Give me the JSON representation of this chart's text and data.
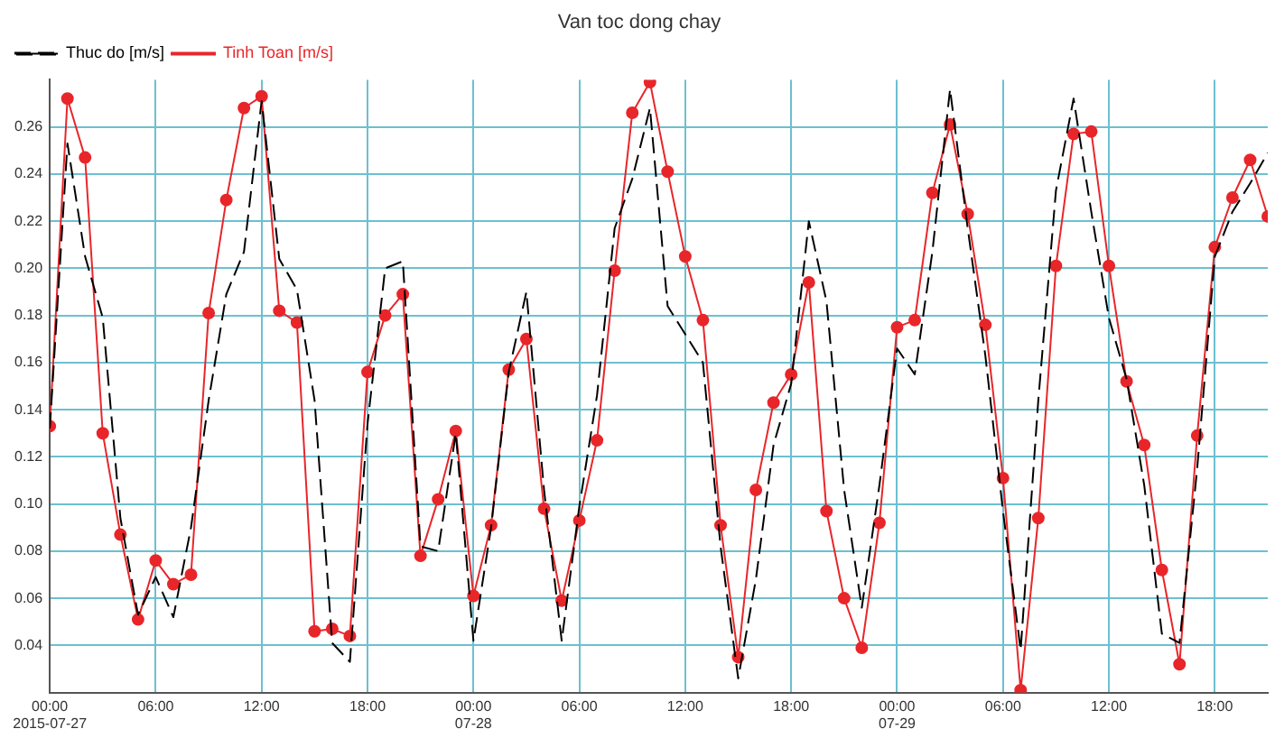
{
  "chart_data": {
    "type": "line",
    "title": "Van toc dong chay",
    "x": [
      "2015-07-27T00:00",
      "2015-07-27T01:00",
      "2015-07-27T02:00",
      "2015-07-27T03:00",
      "2015-07-27T04:00",
      "2015-07-27T05:00",
      "2015-07-27T06:00",
      "2015-07-27T07:00",
      "2015-07-27T08:00",
      "2015-07-27T09:00",
      "2015-07-27T10:00",
      "2015-07-27T11:00",
      "2015-07-27T12:00",
      "2015-07-27T13:00",
      "2015-07-27T14:00",
      "2015-07-27T15:00",
      "2015-07-27T16:00",
      "2015-07-27T17:00",
      "2015-07-27T18:00",
      "2015-07-27T19:00",
      "2015-07-27T20:00",
      "2015-07-27T21:00",
      "2015-07-27T22:00",
      "2015-07-27T23:00",
      "2015-07-28T00:00",
      "2015-07-28T01:00",
      "2015-07-28T02:00",
      "2015-07-28T03:00",
      "2015-07-28T04:00",
      "2015-07-28T05:00",
      "2015-07-28T06:00",
      "2015-07-28T07:00",
      "2015-07-28T08:00",
      "2015-07-28T09:00",
      "2015-07-28T10:00",
      "2015-07-28T11:00",
      "2015-07-28T12:00",
      "2015-07-28T13:00",
      "2015-07-28T14:00",
      "2015-07-28T15:00",
      "2015-07-28T16:00",
      "2015-07-28T17:00",
      "2015-07-28T18:00",
      "2015-07-28T19:00",
      "2015-07-28T20:00",
      "2015-07-28T21:00",
      "2015-07-28T22:00",
      "2015-07-28T23:00",
      "2015-07-29T00:00",
      "2015-07-29T01:00",
      "2015-07-29T02:00",
      "2015-07-29T03:00",
      "2015-07-29T04:00",
      "2015-07-29T05:00",
      "2015-07-29T06:00",
      "2015-07-29T07:00",
      "2015-07-29T08:00",
      "2015-07-29T09:00",
      "2015-07-29T10:00",
      "2015-07-29T11:00",
      "2015-07-29T12:00",
      "2015-07-29T13:00",
      "2015-07-29T14:00",
      "2015-07-29T15:00",
      "2015-07-29T16:00",
      "2015-07-29T17:00",
      "2015-07-29T18:00",
      "2015-07-29T19:00",
      "2015-07-29T20:00",
      "2015-07-29T21:00"
    ],
    "series": [
      {
        "name": "Thuc do [m/s]",
        "color": "#000000",
        "line_style": "dashed",
        "marker": "none",
        "values": [
          0.132,
          0.253,
          0.205,
          0.179,
          0.094,
          0.053,
          0.069,
          0.052,
          0.09,
          0.144,
          0.189,
          0.207,
          0.271,
          0.204,
          0.191,
          0.144,
          0.041,
          0.033,
          0.134,
          0.2,
          0.203,
          0.082,
          0.08,
          0.13,
          0.042,
          0.09,
          0.156,
          0.19,
          0.106,
          0.042,
          0.099,
          0.146,
          0.217,
          0.238,
          0.268,
          0.184,
          0.172,
          0.16,
          0.082,
          0.026,
          0.068,
          0.125,
          0.151,
          0.22,
          0.186,
          0.106,
          0.056,
          0.108,
          0.166,
          0.155,
          0.207,
          0.276,
          0.217,
          0.163,
          0.097,
          0.038,
          0.144,
          0.233,
          0.272,
          0.224,
          0.179,
          0.153,
          0.108,
          0.045,
          0.041,
          0.115,
          0.205,
          0.224,
          0.236,
          0.249
        ]
      },
      {
        "name": "Tinh Toan [m/s]",
        "color": "#e8262a",
        "line_style": "solid",
        "marker": "circle",
        "values": [
          0.133,
          0.272,
          0.247,
          0.13,
          0.087,
          0.051,
          0.076,
          0.066,
          0.07,
          0.181,
          0.229,
          0.268,
          0.273,
          0.182,
          0.177,
          0.046,
          0.047,
          0.044,
          0.156,
          0.18,
          0.189,
          0.078,
          0.102,
          0.131,
          0.061,
          0.091,
          0.157,
          0.17,
          0.098,
          0.059,
          0.093,
          0.127,
          0.199,
          0.266,
          0.279,
          0.241,
          0.205,
          0.178,
          0.091,
          0.035,
          0.106,
          0.143,
          0.155,
          0.194,
          0.097,
          0.06,
          0.039,
          0.092,
          0.175,
          0.178,
          0.232,
          0.261,
          0.223,
          0.176,
          0.111,
          0.021,
          0.094,
          0.201,
          0.257,
          0.258,
          0.201,
          0.152,
          0.125,
          0.072,
          0.032,
          0.129,
          0.209,
          0.23,
          0.246,
          0.222
        ]
      }
    ],
    "xlim": [
      "2015-07-27T00:00",
      "2015-07-29T21:00"
    ],
    "xticks": [
      {
        "value": "2015-07-27T00:00",
        "label": "00:00\n2015-07-27"
      },
      {
        "value": "2015-07-27T06:00",
        "label": "06:00"
      },
      {
        "value": "2015-07-27T12:00",
        "label": "12:00"
      },
      {
        "value": "2015-07-27T18:00",
        "label": "18:00"
      },
      {
        "value": "2015-07-28T00:00",
        "label": "00:00\n07-28"
      },
      {
        "value": "2015-07-28T06:00",
        "label": "06:00"
      },
      {
        "value": "2015-07-28T12:00",
        "label": "12:00"
      },
      {
        "value": "2015-07-28T18:00",
        "label": "18:00"
      },
      {
        "value": "2015-07-29T00:00",
        "label": "00:00\n07-29"
      },
      {
        "value": "2015-07-29T06:00",
        "label": "06:00"
      },
      {
        "value": "2015-07-29T12:00",
        "label": "12:00"
      },
      {
        "value": "2015-07-29T18:00",
        "label": "18:00"
      }
    ],
    "ylim": [
      0.02,
      0.28
    ],
    "yticks": [
      0.04,
      0.06,
      0.08,
      {
        "value": 0.1,
        "label": "0.10"
      },
      0.12,
      0.14,
      0.16,
      0.18,
      {
        "value": 0.2,
        "label": "0.20"
      },
      0.22,
      0.24,
      0.26
    ],
    "grid": true,
    "legend": "top left"
  }
}
